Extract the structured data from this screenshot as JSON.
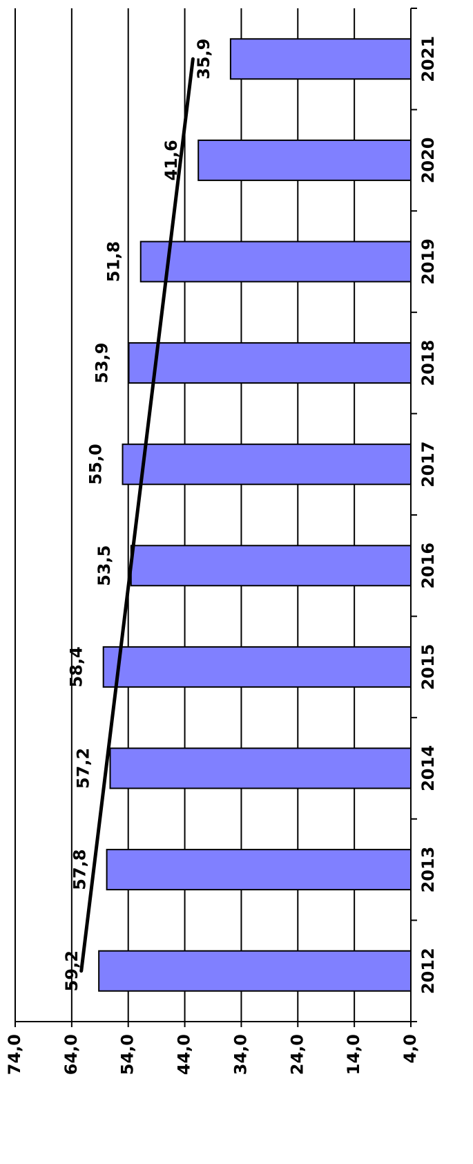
{
  "chart_data": {
    "type": "bar",
    "orientation": "rotated",
    "categories": [
      "2012",
      "2013",
      "2014",
      "2015",
      "2016",
      "2017",
      "2018",
      "2019",
      "2020",
      "2021"
    ],
    "values": [
      59.2,
      57.8,
      57.2,
      58.4,
      53.5,
      55.0,
      53.9,
      51.8,
      41.6,
      35.9
    ],
    "value_labels": [
      "59,2",
      "57,8",
      "57,2",
      "58,4",
      "53,5",
      "55,0",
      "53,9",
      "51,8",
      "41,6",
      "35,9"
    ],
    "color": "#8080ff",
    "ylim": [
      4,
      74
    ],
    "yticks": [
      {
        "value": 4,
        "label": "4,0"
      },
      {
        "value": 14,
        "label": "14,0"
      },
      {
        "value": 24,
        "label": "24,0"
      },
      {
        "value": 34,
        "label": "34,0"
      },
      {
        "value": 44,
        "label": "44,0"
      },
      {
        "value": 54,
        "label": "54,0"
      },
      {
        "value": 64,
        "label": "64,0"
      },
      {
        "value": 74,
        "label": "74,0"
      }
    ],
    "grid": true,
    "trendline": true
  }
}
